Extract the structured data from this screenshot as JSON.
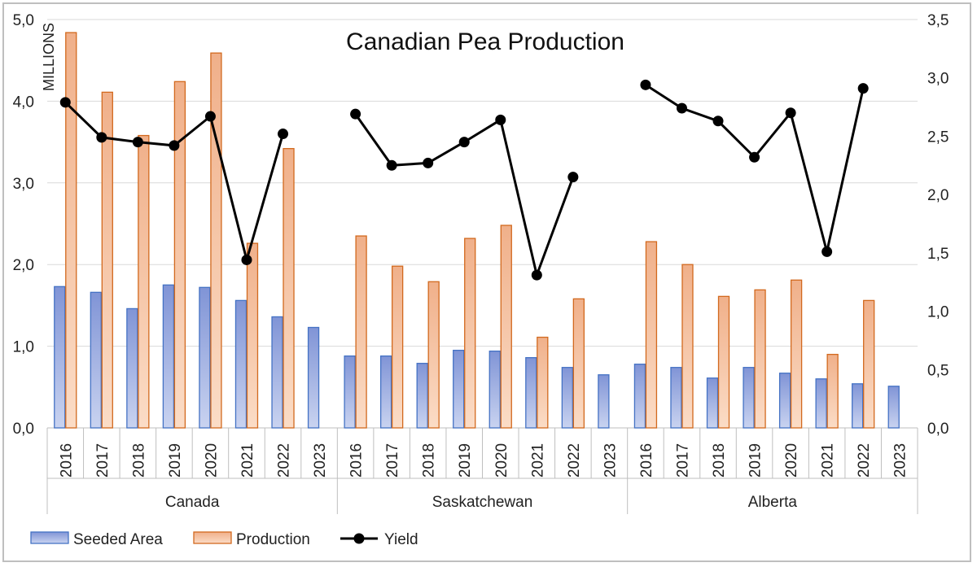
{
  "chart_data": {
    "type": "bar",
    "title": "Canadian Pea Production",
    "y_unit_label": "MILLIONS",
    "ylim_left": [
      0,
      5
    ],
    "ylim_right": [
      0,
      3.5
    ],
    "left_ticks": [
      "0,0",
      "1,0",
      "2,0",
      "3,0",
      "4,0",
      "5,0"
    ],
    "right_ticks": [
      "0,0",
      "0,5",
      "1,0",
      "1,5",
      "2,0",
      "2,5",
      "3,0",
      "3,5"
    ],
    "grid": true,
    "legend_position": "bottom-left",
    "groups": [
      {
        "name": "Canada",
        "categories": [
          "2016",
          "2017",
          "2018",
          "2019",
          "2020",
          "2021",
          "2022",
          "2023"
        ],
        "seeded_area": [
          1.73,
          1.66,
          1.46,
          1.75,
          1.72,
          1.56,
          1.36,
          1.23
        ],
        "production": [
          4.84,
          4.11,
          3.58,
          4.24,
          4.59,
          2.26,
          3.42,
          null
        ],
        "yield": [
          2.79,
          2.49,
          2.45,
          2.42,
          2.67,
          1.44,
          2.52,
          null
        ]
      },
      {
        "name": "Saskatchewan",
        "categories": [
          "2016",
          "2017",
          "2018",
          "2019",
          "2020",
          "2021",
          "2022",
          "2023"
        ],
        "seeded_area": [
          0.88,
          0.88,
          0.79,
          0.95,
          0.94,
          0.86,
          0.74,
          0.65
        ],
        "production": [
          2.35,
          1.98,
          1.79,
          2.32,
          2.48,
          1.11,
          1.58,
          null
        ],
        "yield": [
          2.69,
          2.25,
          2.27,
          2.45,
          2.64,
          1.31,
          2.15,
          null
        ]
      },
      {
        "name": "Alberta",
        "categories": [
          "2016",
          "2017",
          "2018",
          "2019",
          "2020",
          "2021",
          "2022",
          "2023"
        ],
        "seeded_area": [
          0.78,
          0.74,
          0.61,
          0.74,
          0.67,
          0.6,
          0.54,
          0.51
        ],
        "production": [
          2.28,
          2.0,
          1.61,
          1.69,
          1.81,
          0.9,
          1.56,
          null
        ],
        "yield": [
          2.94,
          2.74,
          2.63,
          2.32,
          2.7,
          1.51,
          2.91,
          null
        ]
      }
    ],
    "series": [
      {
        "name": "Seeded Area",
        "key": "seeded_area",
        "axis": "left",
        "kind": "bar",
        "color": "#8fa3dc",
        "edge": "#4472c4"
      },
      {
        "name": "Production",
        "key": "production",
        "axis": "left",
        "kind": "bar",
        "color": "#f1b894",
        "edge": "#d2691e"
      },
      {
        "name": "Yield",
        "key": "yield",
        "axis": "right",
        "kind": "line",
        "color": "#000000"
      }
    ]
  }
}
